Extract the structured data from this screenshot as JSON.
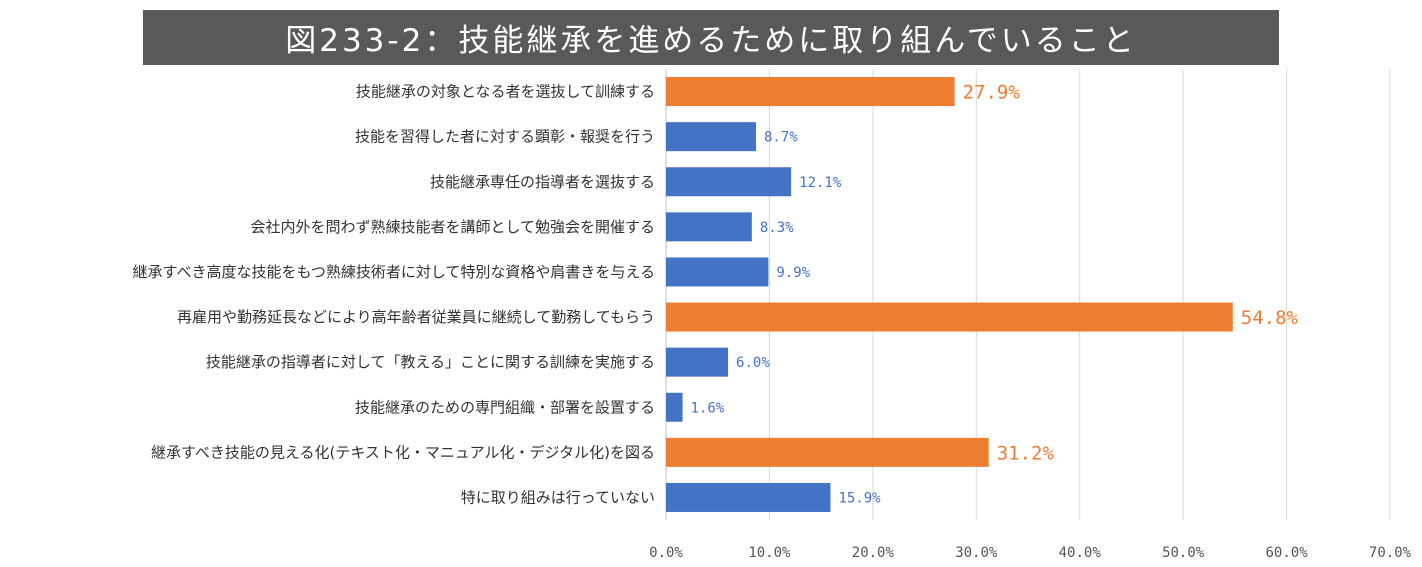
{
  "title": "図233-2：技能継承を進めるために取り組んでいること",
  "chart_data": {
    "type": "bar",
    "orientation": "horizontal",
    "categories": [
      "技能継承の対象となる者を選抜して訓練する",
      "技能を習得した者に対する顕彰・報奨を行う",
      "技能継承専任の指導者を選抜する",
      "会社内外を問わず熟練技能者を講師として勉強会を開催する",
      "継承すべき高度な技能をもつ熟練技術者に対して特別な資格や肩書きを与える",
      "再雇用や勤務延長などにより高年齢者従業員に継続して勤務してもらう",
      "技能継承の指導者に対して「教える」ことに関する訓練を実施する",
      "技能継承のための専門組織・部署を設置する",
      "継承すべき技能の見える化(テキスト化・マニュアル化・デジタル化)を図る",
      "特に取り組みは行っていない"
    ],
    "values": [
      27.9,
      8.7,
      12.1,
      8.3,
      9.9,
      54.8,
      6.0,
      1.6,
      31.2,
      15.9
    ],
    "value_labels": [
      "27.9%",
      "8.7%",
      "12.1%",
      "8.3%",
      "9.9%",
      "54.8%",
      "6.0%",
      "1.6%",
      "31.2%",
      "15.9%"
    ],
    "highlight": [
      true,
      false,
      false,
      false,
      false,
      true,
      false,
      false,
      true,
      false
    ],
    "colors": {
      "normal": "#4472c4",
      "highlight": "#ed7d31",
      "grid": "#d9d9d9"
    },
    "xlim": [
      0,
      70
    ],
    "x_ticks": [
      "0.0%",
      "10.0%",
      "20.0%",
      "30.0%",
      "40.0%",
      "50.0%",
      "60.0%",
      "70.0%"
    ],
    "grid": true
  }
}
